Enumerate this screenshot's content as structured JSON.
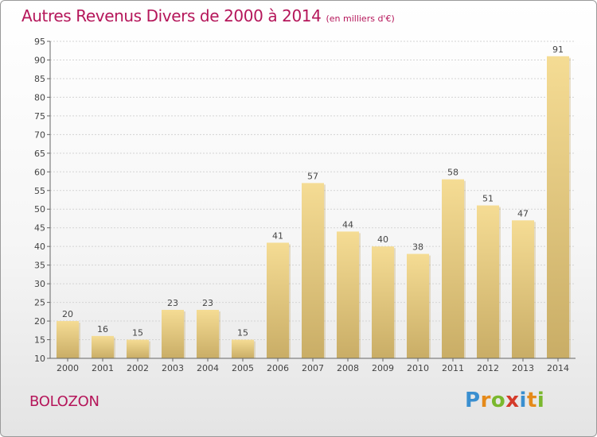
{
  "title": "Autres Revenus Divers de 2000 à 2014",
  "subtitle": "(en milliers d'€)",
  "location": "BOLOZON",
  "logo": {
    "letters": [
      "P",
      "r",
      "o",
      "x",
      "i",
      "t",
      "i"
    ],
    "colors": [
      "#3a8fd0",
      "#e58a1a",
      "#7ab82e",
      "#d43a2a",
      "#3a8fd0",
      "#e58a1a",
      "#7ab82e"
    ]
  },
  "chart_data": {
    "type": "bar",
    "categories": [
      "2000",
      "2001",
      "2002",
      "2003",
      "2004",
      "2005",
      "2006",
      "2007",
      "2008",
      "2009",
      "2010",
      "2011",
      "2012",
      "2013",
      "2014"
    ],
    "values": [
      20,
      16,
      15,
      23,
      23,
      15,
      41,
      57,
      44,
      40,
      38,
      58,
      51,
      47,
      91
    ],
    "ylim": [
      10,
      95
    ],
    "yticks": [
      10,
      15,
      20,
      25,
      30,
      35,
      40,
      45,
      50,
      55,
      60,
      65,
      70,
      75,
      80,
      85,
      90,
      95
    ],
    "grid": true,
    "bar_color": "#f0d58c",
    "bar_shadow_color": "#c2a86a"
  }
}
